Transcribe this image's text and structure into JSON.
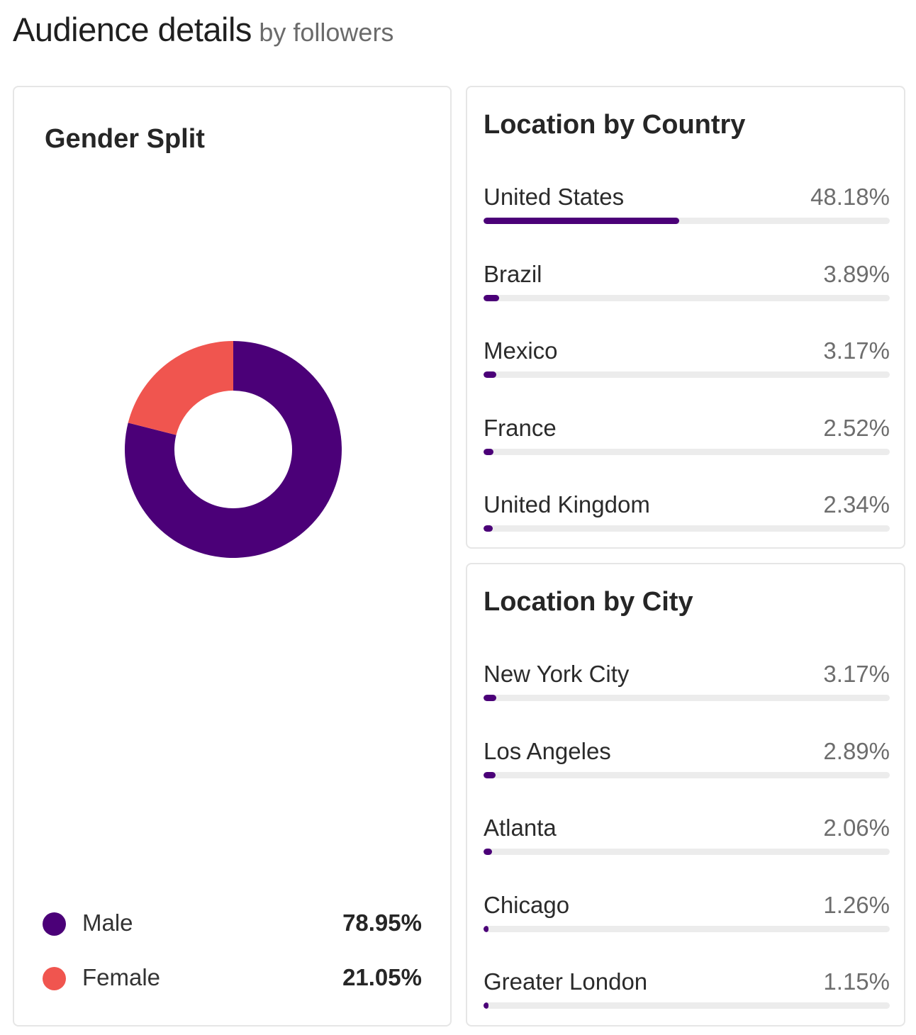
{
  "header": {
    "title": "Audience details",
    "subtitle": "by followers"
  },
  "colors": {
    "primary": "#4b0078",
    "secondary": "#f0554f",
    "track": "#ececec"
  },
  "gender": {
    "title": "Gender Split",
    "legend": [
      {
        "label": "Male",
        "value": "78.95%",
        "color": "#4b0078"
      },
      {
        "label": "Female",
        "value": "21.05%",
        "color": "#f0554f"
      }
    ]
  },
  "country": {
    "title": "Location by Country",
    "items": [
      {
        "label": "United States",
        "value": "48.18%"
      },
      {
        "label": "Brazil",
        "value": "3.89%"
      },
      {
        "label": "Mexico",
        "value": "3.17%"
      },
      {
        "label": "France",
        "value": "2.52%"
      },
      {
        "label": "United Kingdom",
        "value": "2.34%"
      }
    ]
  },
  "city": {
    "title": "Location by City",
    "items": [
      {
        "label": "New York City",
        "value": "3.17%"
      },
      {
        "label": "Los Angeles",
        "value": "2.89%"
      },
      {
        "label": "Atlanta",
        "value": "2.06%"
      },
      {
        "label": "Chicago",
        "value": "1.26%"
      },
      {
        "label": "Greater London",
        "value": "1.15%"
      }
    ]
  },
  "chart_data": [
    {
      "type": "pie",
      "title": "Gender Split",
      "categories": [
        "Male",
        "Female"
      ],
      "values": [
        78.95,
        21.05
      ],
      "donut": true,
      "legend": "bottom"
    },
    {
      "type": "bar",
      "title": "Location by Country",
      "orientation": "horizontal",
      "categories": [
        "United States",
        "Brazil",
        "Mexico",
        "France",
        "United Kingdom"
      ],
      "values": [
        48.18,
        3.89,
        3.17,
        2.52,
        2.34
      ],
      "ylim": [
        0,
        100
      ]
    },
    {
      "type": "bar",
      "title": "Location by City",
      "orientation": "horizontal",
      "categories": [
        "New York City",
        "Los Angeles",
        "Atlanta",
        "Chicago",
        "Greater London"
      ],
      "values": [
        3.17,
        2.89,
        2.06,
        1.26,
        1.15
      ],
      "ylim": [
        0,
        100
      ]
    }
  ]
}
